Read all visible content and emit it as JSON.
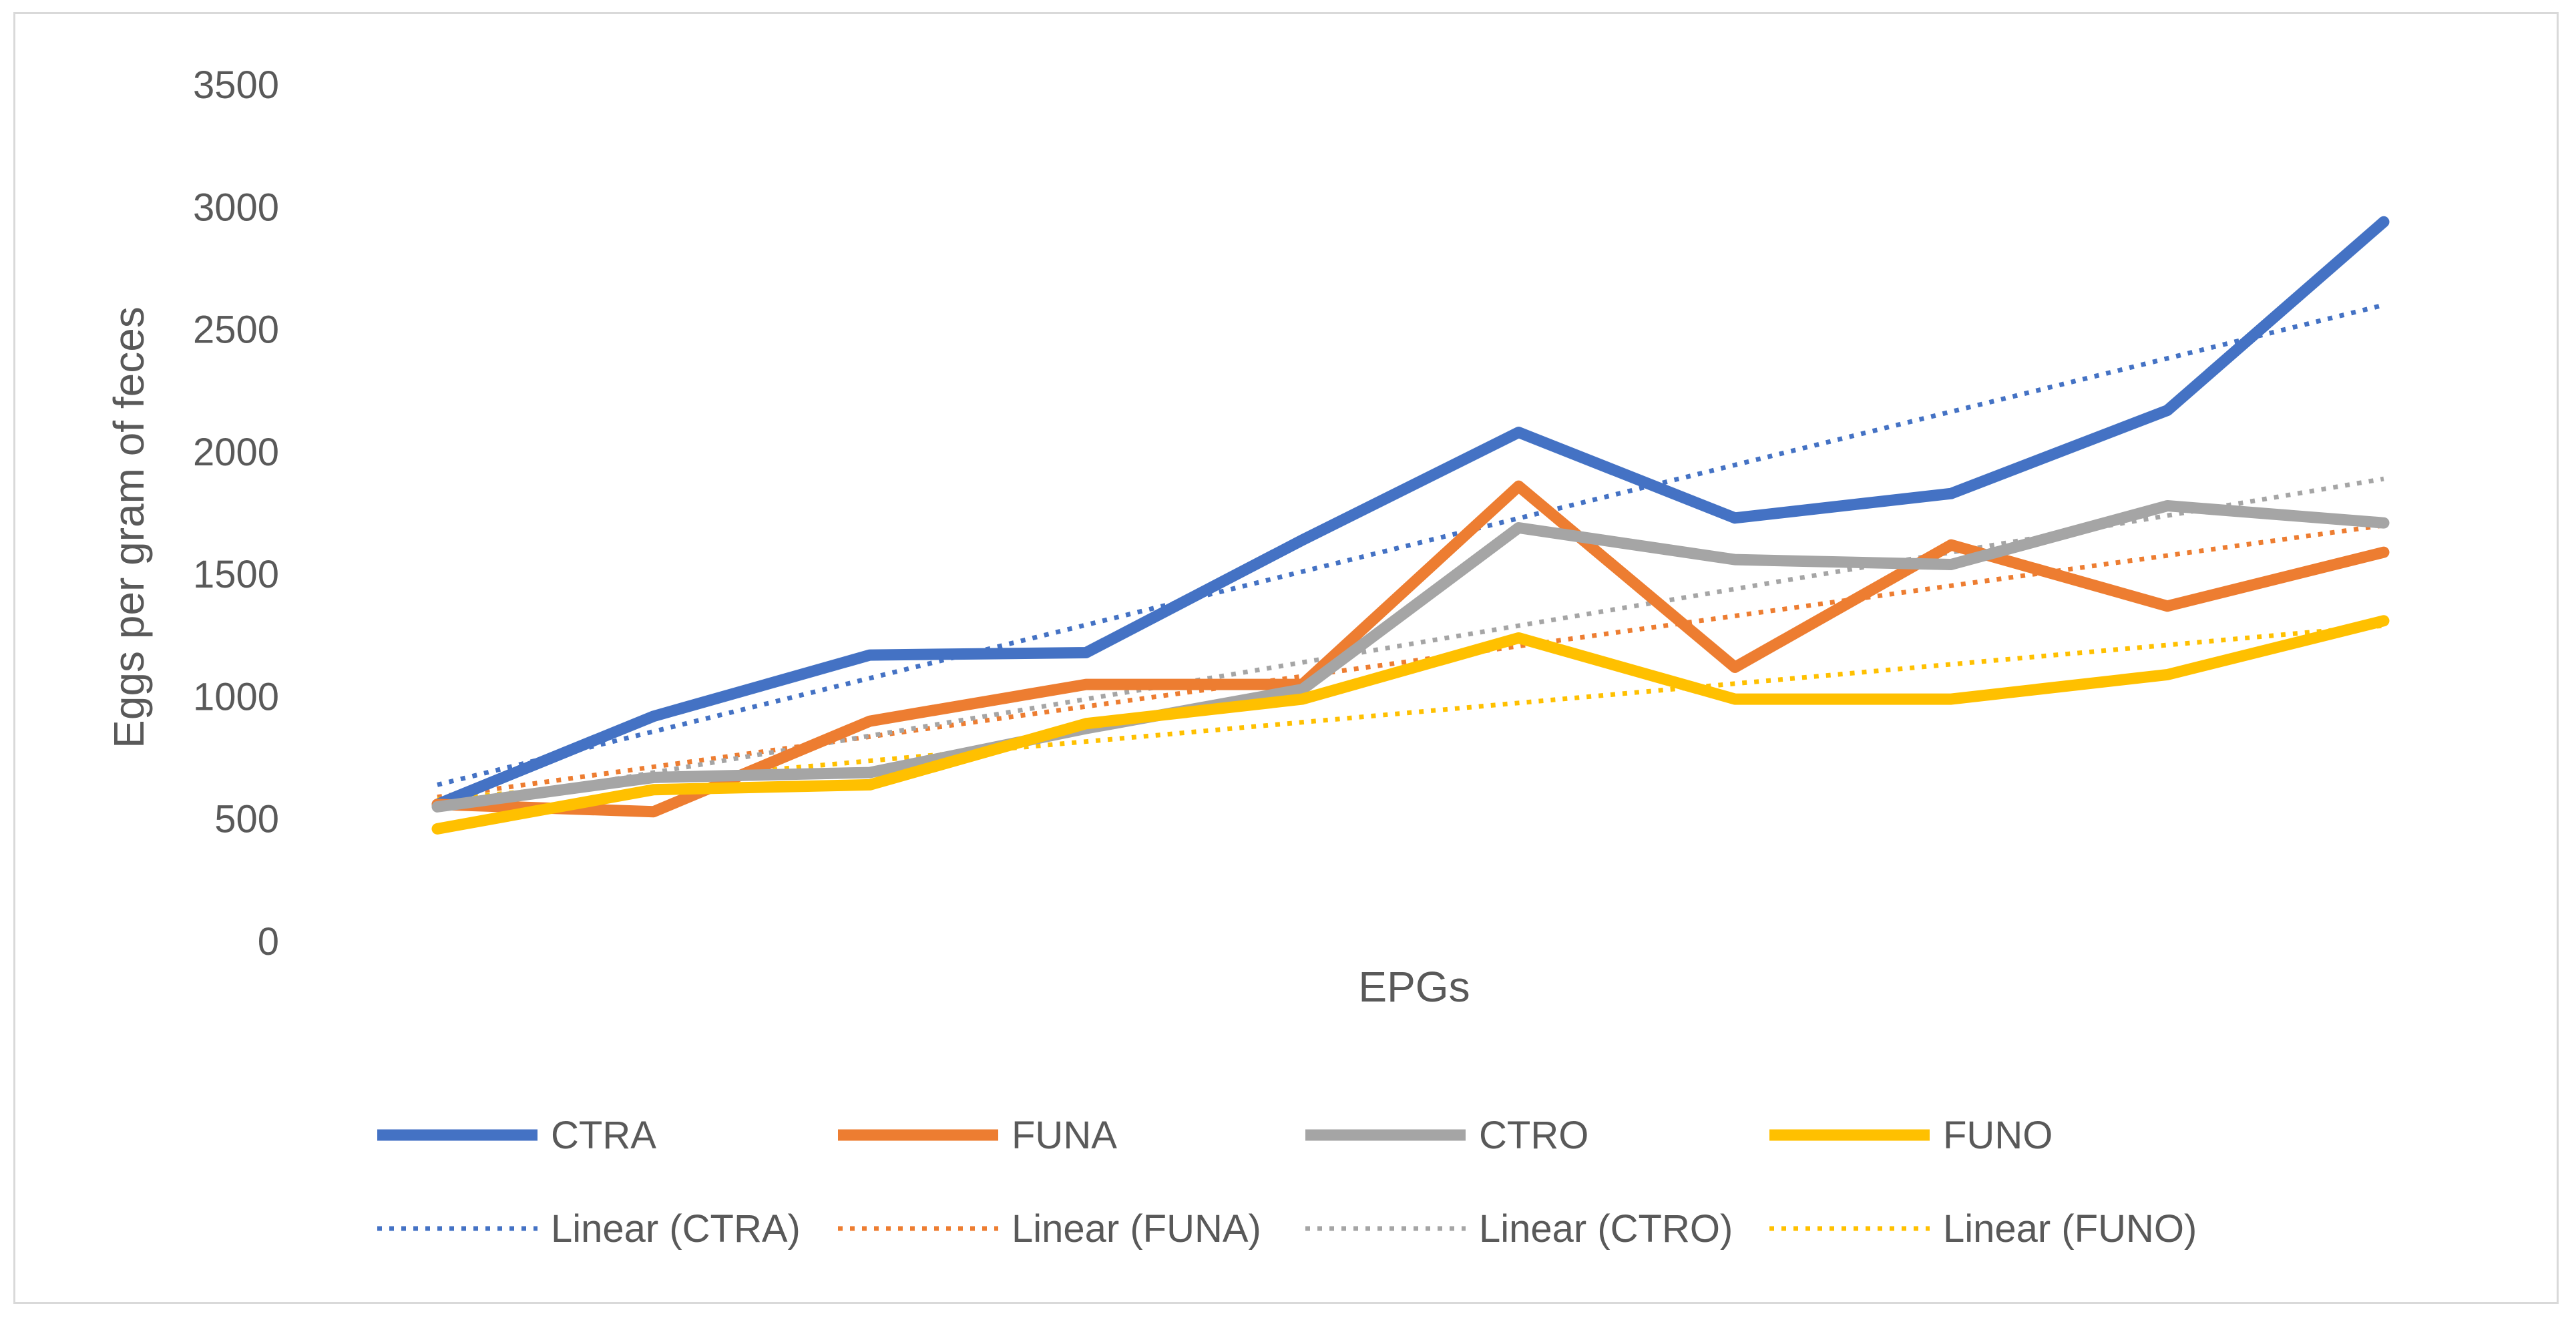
{
  "chart_data": {
    "type": "line",
    "title": "",
    "xlabel": "EPGs",
    "ylabel": "Eggs per gram of feces",
    "ylim": [
      0,
      3500
    ],
    "yticks": [
      0,
      500,
      1000,
      1500,
      2000,
      2500,
      3000,
      3500
    ],
    "x": [
      1,
      2,
      3,
      4,
      5,
      6,
      7,
      8,
      9,
      10
    ],
    "grid": false,
    "legend_position": "bottom",
    "series": [
      {
        "name": "CTRA",
        "color": "#4472C4",
        "values": [
          560,
          920,
          1170,
          1180,
          1640,
          2080,
          1730,
          1830,
          2170,
          2940
        ]
      },
      {
        "name": "FUNA",
        "color": "#ED7D31",
        "values": [
          560,
          530,
          900,
          1050,
          1050,
          1860,
          1120,
          1620,
          1370,
          1590
        ]
      },
      {
        "name": "CTRO",
        "color": "#A5A5A5",
        "values": [
          550,
          670,
          690,
          870,
          1030,
          1690,
          1560,
          1540,
          1780,
          1710
        ]
      },
      {
        "name": "FUNO",
        "color": "#FFC000",
        "values": [
          460,
          620,
          640,
          890,
          990,
          1240,
          990,
          990,
          1090,
          1310
        ]
      }
    ],
    "trendlines": [
      {
        "name": "Linear (CTRA)",
        "color": "#4472C4",
        "start": 640,
        "end": 2600
      },
      {
        "name": "Linear (FUNA)",
        "color": "#ED7D31",
        "start": 590,
        "end": 1700
      },
      {
        "name": "Linear (CTRO)",
        "color": "#A5A5A5",
        "start": 540,
        "end": 1890
      },
      {
        "name": "Linear (FUNO)",
        "color": "#FFC000",
        "start": 580,
        "end": 1290
      }
    ]
  }
}
